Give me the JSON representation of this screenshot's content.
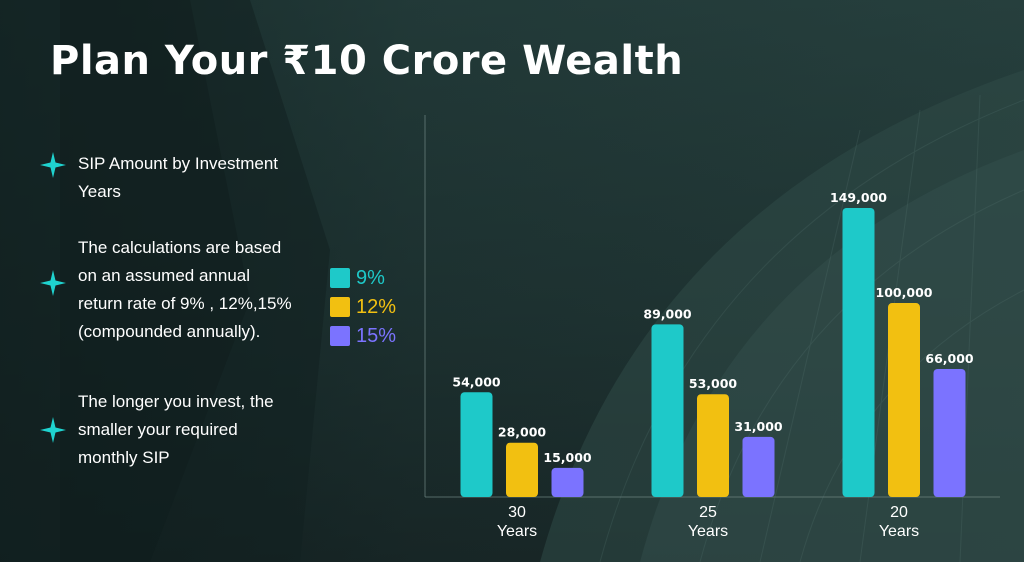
{
  "title": "Plan Your ₹10 Crore Wealth",
  "bullets": [
    {
      "lines": [
        "SIP Amount by Investment",
        "Years"
      ]
    },
    {
      "lines": [
        "The calculations are based",
        "on an assumed annual",
        "return rate of 9% , 12%,15%",
        "(compounded annually)."
      ]
    },
    {
      "lines": [
        "The longer you invest, the",
        "smaller your required",
        "monthly SIP"
      ]
    }
  ],
  "colors": {
    "rate_9": "#1ec9c9",
    "rate_12": "#f2c011",
    "rate_15": "#7b73ff",
    "accent_star": "#1fd3cf"
  },
  "chart_data": {
    "type": "bar",
    "categories": [
      [
        "30",
        "Years"
      ],
      [
        "25",
        "Years"
      ],
      [
        "20",
        "Years"
      ]
    ],
    "series": [
      {
        "name": "9%",
        "values": [
          54000,
          89000,
          149000
        ],
        "labels": [
          "54,000",
          "89,000",
          "149,000"
        ]
      },
      {
        "name": "12%",
        "values": [
          28000,
          53000,
          100000
        ],
        "labels": [
          "28,000",
          "53,000",
          "100,000"
        ]
      },
      {
        "name": "15%",
        "values": [
          15000,
          31000,
          66000
        ],
        "labels": [
          "15,000",
          "31,000",
          "66,000"
        ]
      }
    ],
    "title": "",
    "xlabel": "",
    "ylabel": "",
    "ylim": [
      0,
      165000
    ],
    "grid": false,
    "legend": "left"
  }
}
